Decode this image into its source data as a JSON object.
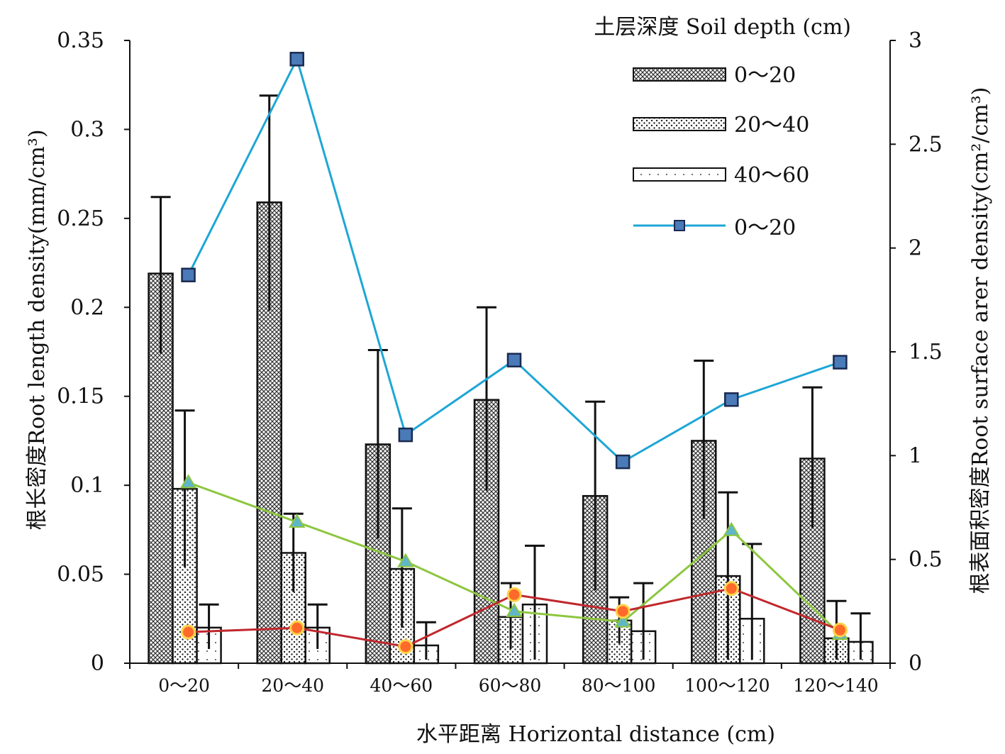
{
  "chart_data": {
    "type": "bar",
    "categories": [
      "0～20",
      "20～40",
      "40～60",
      "60～80",
      "80～100",
      "100～120",
      "120～140"
    ],
    "xlabel": "水平距离 Horizontal distance (cm)",
    "ylabel_left": "根长密度Root length density(mm/cm³)",
    "ylabel_right": "根表面积密度Root surface arer density(cm²/cm³)",
    "ylim_left": [
      0,
      0.35
    ],
    "ylim_right": [
      0,
      3
    ],
    "yticks_left": [
      "0",
      "0.05",
      "0.1",
      "0.15",
      "0.2",
      "0.25",
      "0.3",
      "0.35"
    ],
    "yticks_right": [
      "0",
      "0.5",
      "1",
      "1.5",
      "2",
      "2.5",
      "3"
    ],
    "legend_title": "土层深度 Soil depth (cm)",
    "legend_position": "top-right",
    "bar_series": [
      {
        "name": "0～20",
        "pattern": "crosshatch",
        "values": [
          0.219,
          0.259,
          0.123,
          0.148,
          0.094,
          0.125,
          0.115
        ],
        "err_upper": [
          0.262,
          0.319,
          0.176,
          0.2,
          0.147,
          0.17,
          0.155
        ],
        "err_lower": [
          0.174,
          0.198,
          0.07,
          0.097,
          0.041,
          0.081,
          0.076
        ]
      },
      {
        "name": "20～40",
        "pattern": "dots",
        "values": [
          0.098,
          0.062,
          0.053,
          0.026,
          0.024,
          0.049,
          0.014
        ],
        "err_upper": [
          0.142,
          0.084,
          0.087,
          0.045,
          0.037,
          0.096,
          0.035
        ],
        "err_lower": [
          0.054,
          0.04,
          0.02,
          0.008,
          0.011,
          0.002,
          0.002
        ]
      },
      {
        "name": "40～60",
        "pattern": "sparse-dots",
        "values": [
          0.02,
          0.02,
          0.01,
          0.033,
          0.018,
          0.025,
          0.012
        ],
        "err_upper": [
          0.033,
          0.033,
          0.023,
          0.066,
          0.045,
          0.067,
          0.028
        ],
        "err_lower": [
          0.008,
          0.008,
          0.002,
          0.002,
          0.002,
          0.002,
          0.002
        ]
      }
    ],
    "line_series": [
      {
        "name": "0～20",
        "axis": "right",
        "color": "#1ea6d6",
        "marker": "square",
        "values": [
          1.87,
          2.91,
          1.1,
          1.46,
          0.97,
          1.27,
          1.45
        ]
      },
      {
        "axis": "right",
        "color": "#8dc63f",
        "marker": "triangle",
        "values": [
          0.87,
          0.68,
          0.49,
          0.25,
          0.2,
          0.64,
          0.14
        ]
      },
      {
        "axis": "right",
        "color": "#c0282d",
        "marker": "circle",
        "values": [
          0.15,
          0.17,
          0.08,
          0.33,
          0.25,
          0.36,
          0.16
        ]
      }
    ]
  }
}
